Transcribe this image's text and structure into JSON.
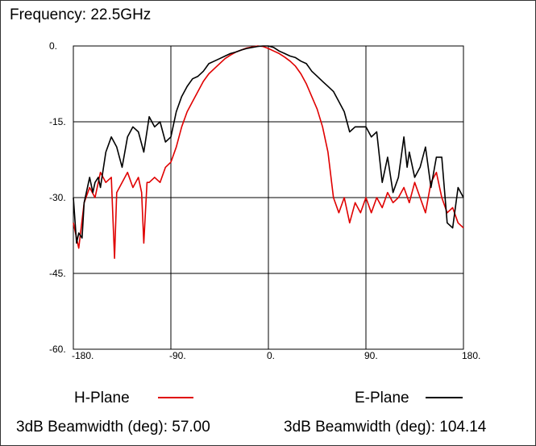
{
  "chart_data": {
    "type": "line",
    "title": "Frequency: 22.5GHz",
    "xlim": [
      -180,
      180
    ],
    "ylim": [
      -60,
      0
    ],
    "x_ticks": [
      -180,
      -90,
      0,
      90,
      180
    ],
    "x_tick_labels": [
      "-180.",
      "-90.",
      "0.",
      "90.",
      "180."
    ],
    "y_ticks": [
      0,
      -15,
      -30,
      -45,
      -60
    ],
    "y_tick_labels": [
      "0.",
      "-15.",
      "-30.",
      "-45.",
      "-60."
    ],
    "grid": true,
    "legend_position": "bottom",
    "series": [
      {
        "name": "H-Plane",
        "color": "#e00000",
        "x": [
          -180,
          -175,
          -170,
          -165,
          -160,
          -155,
          -150,
          -145,
          -142,
          -140,
          -135,
          -130,
          -125,
          -120,
          -117,
          -115,
          -112,
          -110,
          -105,
          -100,
          -95,
          -90,
          -85,
          -80,
          -75,
          -70,
          -65,
          -60,
          -55,
          -50,
          -45,
          -40,
          -35,
          -30,
          -25,
          -20,
          -15,
          -10,
          -5,
          0,
          5,
          10,
          15,
          20,
          25,
          30,
          35,
          40,
          45,
          50,
          55,
          60,
          65,
          70,
          75,
          80,
          85,
          90,
          95,
          100,
          105,
          110,
          115,
          120,
          125,
          130,
          135,
          140,
          145,
          150,
          155,
          160,
          165,
          170,
          175,
          180
        ],
        "values": [
          -35,
          -40,
          -31,
          -28,
          -30,
          -25,
          -27,
          -26,
          -42,
          -29,
          -27,
          -25,
          -28,
          -26,
          -29,
          -39,
          -27,
          -27,
          -26,
          -27,
          -24,
          -23,
          -20,
          -16,
          -13,
          -11,
          -9,
          -7,
          -5.5,
          -4.5,
          -3.5,
          -2.5,
          -1.8,
          -1.2,
          -0.8,
          -0.4,
          -0.2,
          0,
          -0.1,
          -0.5,
          -1,
          -1.5,
          -2.2,
          -3,
          -4,
          -5.5,
          -7.5,
          -10,
          -12.5,
          -16,
          -21,
          -30,
          -33,
          -30,
          -35,
          -31,
          -33,
          -30,
          -33,
          -30,
          -32,
          -29,
          -31,
          -30,
          -28,
          -31,
          -27,
          -30,
          -33,
          -27,
          -25,
          -30,
          -33,
          -32,
          -35,
          -36
        ]
      },
      {
        "name": "E-Plane",
        "color": "#000000",
        "x": [
          -180,
          -177,
          -175,
          -172,
          -170,
          -165,
          -162,
          -160,
          -157,
          -155,
          -150,
          -145,
          -140,
          -135,
          -130,
          -125,
          -120,
          -115,
          -110,
          -105,
          -100,
          -95,
          -90,
          -85,
          -80,
          -75,
          -70,
          -65,
          -60,
          -55,
          -50,
          -45,
          -40,
          -35,
          -30,
          -25,
          -20,
          -15,
          -10,
          -5,
          0,
          5,
          10,
          15,
          20,
          25,
          30,
          35,
          40,
          45,
          50,
          55,
          60,
          65,
          70,
          75,
          80,
          85,
          90,
          95,
          100,
          105,
          110,
          115,
          120,
          125,
          128,
          130,
          135,
          140,
          145,
          150,
          155,
          160,
          165,
          170,
          175,
          180
        ],
        "values": [
          -30,
          -39,
          -37,
          -38,
          -31,
          -26,
          -29,
          -27,
          -26,
          -28,
          -21,
          -18,
          -20,
          -24,
          -18,
          -16,
          -17,
          -21,
          -14,
          -16,
          -15,
          -19,
          -18,
          -13,
          -10,
          -8,
          -6.5,
          -6,
          -5,
          -3.5,
          -3,
          -2.5,
          -2,
          -1.5,
          -1.2,
          -0.8,
          -0.5,
          -0.3,
          -0.1,
          0,
          0,
          -0.3,
          -1,
          -1.5,
          -2,
          -2.3,
          -3,
          -3.5,
          -5,
          -6,
          -7,
          -8,
          -9,
          -11,
          -13,
          -17,
          -16,
          -16,
          -16,
          -18,
          -17,
          -27,
          -22,
          -29,
          -26,
          -18,
          -24,
          -21,
          -26,
          -24,
          -20,
          -28,
          -22,
          -22,
          -35,
          -36,
          -28,
          -30
        ]
      }
    ]
  },
  "title": "Frequency: 22.5GHz",
  "legend": {
    "h_plane_label": "H-Plane",
    "e_plane_label": "E-Plane"
  },
  "beamwidth": {
    "h_text": "3dB Beamwidth (deg): 57.00",
    "e_text": "3dB Beamwidth (deg): 104.14"
  }
}
